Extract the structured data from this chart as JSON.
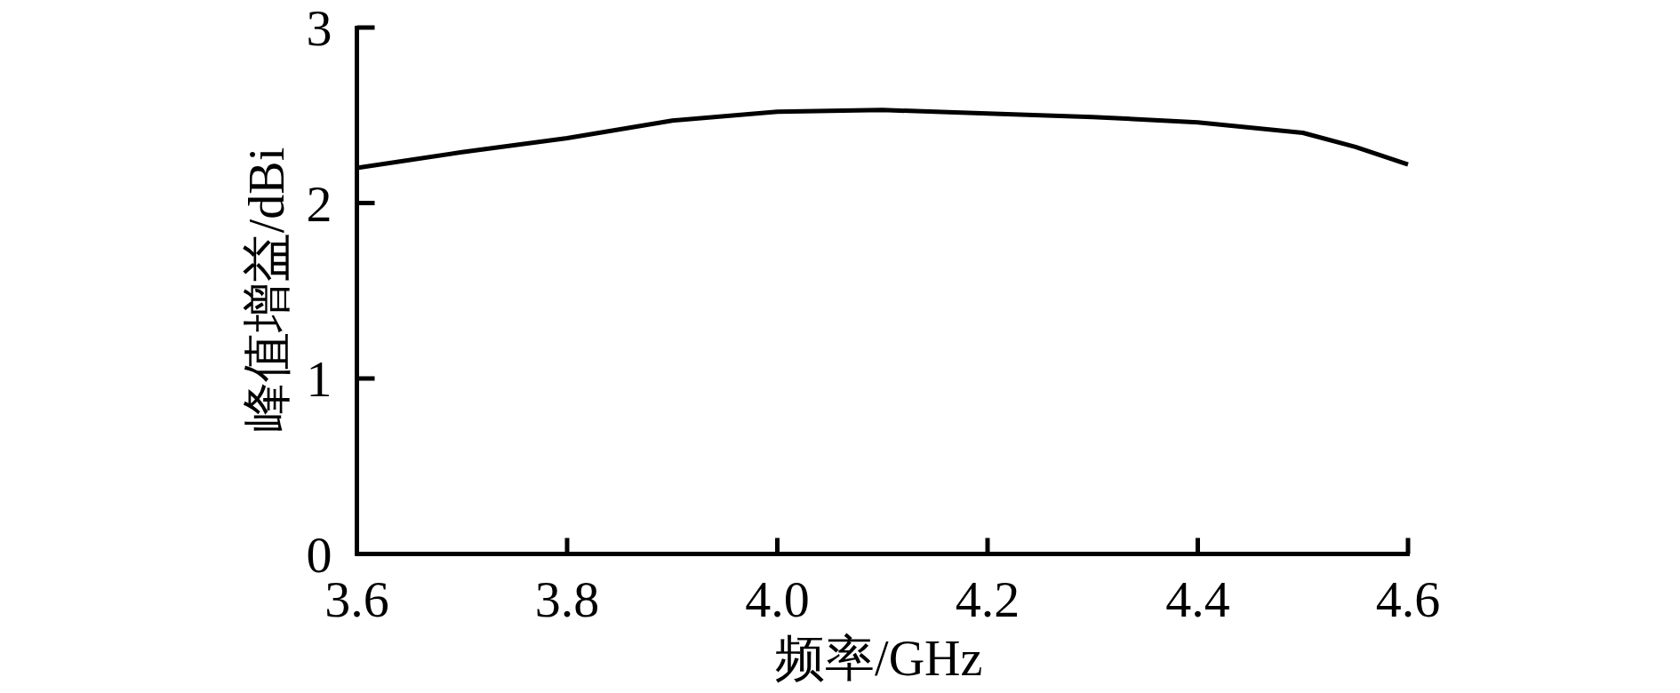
{
  "chart_data": {
    "type": "line",
    "xlabel": "频率/GHz",
    "ylabel": "峰值增益/dBi",
    "x": [
      3.6,
      3.7,
      3.8,
      3.9,
      4.0,
      4.1,
      4.2,
      4.3,
      4.4,
      4.5,
      4.55,
      4.6
    ],
    "series": [
      {
        "color": "#000000",
        "values": [
          2.2,
          2.29,
          2.37,
          2.47,
          2.52,
          2.53,
          2.51,
          2.49,
          2.46,
          2.4,
          2.32,
          2.22
        ]
      }
    ],
    "xlim": [
      3.6,
      4.6
    ],
    "ylim": [
      0,
      3
    ],
    "xticks": [
      3.6,
      3.8,
      {
        "value": 4.0,
        "label": "4.0"
      },
      4.2,
      4.4,
      4.6
    ],
    "yticks": [
      0,
      1,
      2,
      3
    ]
  }
}
